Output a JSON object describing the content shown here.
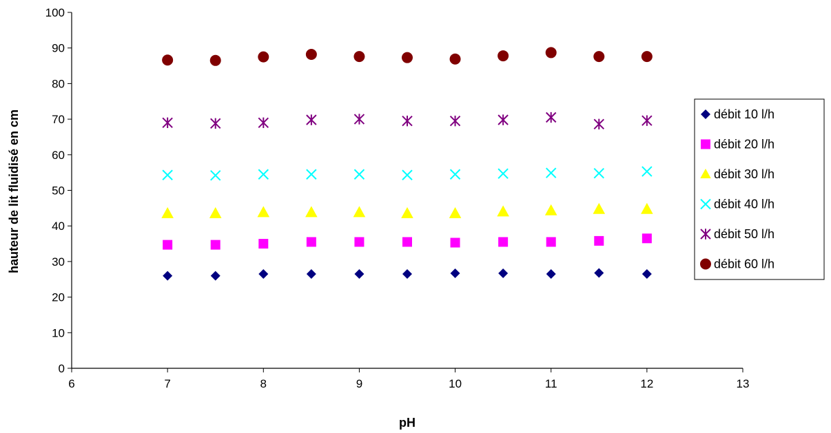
{
  "chart_data": {
    "type": "scatter",
    "title": "",
    "xlabel": "pH",
    "ylabel": "hauteur de lit fluidisé en cm",
    "xlim": [
      6,
      13
    ],
    "ylim": [
      0,
      100
    ],
    "xticks": [
      "6",
      "7",
      "8",
      "9",
      "10",
      "11",
      "12",
      "13"
    ],
    "yticks": [
      "0",
      "10",
      "20",
      "30",
      "40",
      "50",
      "60",
      "70",
      "80",
      "90",
      "100"
    ],
    "grid": false,
    "legend_position": "right",
    "x": [
      7,
      7.5,
      8,
      8.5,
      9,
      9.5,
      10,
      10.5,
      11,
      11.5,
      12
    ],
    "series": [
      {
        "name": "débit 10 l/h",
        "marker": "diamond",
        "color": "#000080",
        "values": [
          26,
          26,
          26.5,
          26.5,
          26.5,
          26.5,
          26.7,
          26.7,
          26.5,
          26.8,
          26.5
        ]
      },
      {
        "name": "débit 20 l/h",
        "marker": "square",
        "color": "#FF00FF",
        "values": [
          34.7,
          34.7,
          35,
          35.5,
          35.5,
          35.5,
          35.3,
          35.5,
          35.5,
          35.8,
          36.5
        ]
      },
      {
        "name": "débit 30 l/h",
        "marker": "triangle",
        "color": "#FFFF00",
        "values": [
          43.5,
          43.5,
          43.8,
          43.8,
          43.8,
          43.5,
          43.5,
          44,
          44.3,
          44.7,
          44.7
        ]
      },
      {
        "name": "débit 40 l/h",
        "marker": "x",
        "color": "#00FFFF",
        "values": [
          54.3,
          54.2,
          54.5,
          54.5,
          54.5,
          54.3,
          54.5,
          54.7,
          54.9,
          54.8,
          55.3
        ]
      },
      {
        "name": "débit 50 l/h",
        "marker": "star",
        "color": "#800080",
        "values": [
          69,
          68.8,
          69,
          69.8,
          70,
          69.5,
          69.5,
          69.8,
          70.5,
          68.6,
          69.6
        ]
      },
      {
        "name": "débit 60 l/h",
        "marker": "circle",
        "color": "#800000",
        "values": [
          86.6,
          86.5,
          87.5,
          88.2,
          87.6,
          87.3,
          86.9,
          87.8,
          88.7,
          87.6,
          87.6
        ]
      }
    ]
  }
}
